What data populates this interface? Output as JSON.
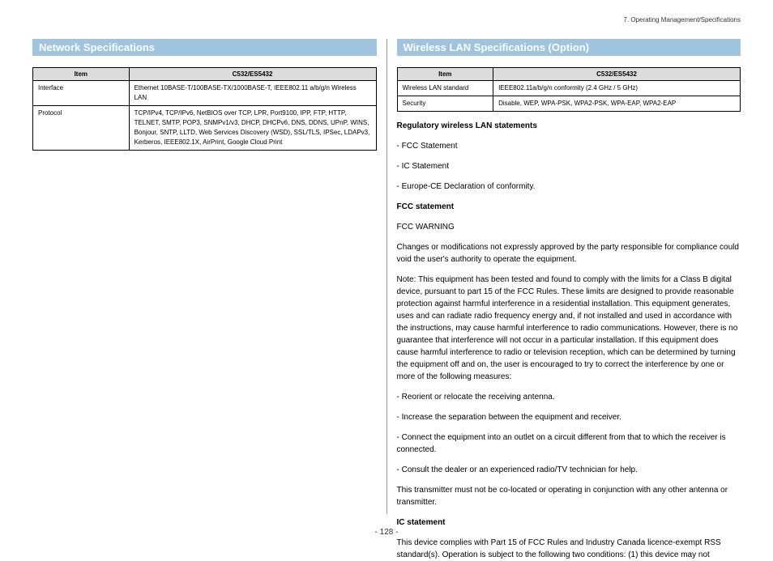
{
  "header": {
    "chapter": "7. Operating Management/Specifications"
  },
  "pageNumber": "- 128 -",
  "left": {
    "title": "Network Specifications",
    "table": {
      "headers": [
        "Item",
        "C532/ES5432"
      ],
      "rows": [
        [
          "Interface",
          "Ethernet 10BASE-T/100BASE-TX/1000BASE-T, IEEE802.11 a/b/g/n Wireless LAN"
        ],
        [
          "Protocol",
          "TCP/IPv4, TCP/IPv6, NetBIOS over TCP, LPR, Port9100, IPP, FTP, HTTP, TELNET, SMTP, POP3, SNMPv1/v3, DHCP, DHCPv6, DNS, DDNS, UPnP, WINS, Bonjour, SNTP, LLTD, Web Services Discovery (WSD), SSL/TLS, IPSec, LDAPv3, Kerberos, IEEE802.1X, AirPrint, Google Cloud Print"
        ]
      ]
    }
  },
  "right": {
    "title": "Wireless LAN Specifications (Option)",
    "table": {
      "headers": [
        "Item",
        "C532/ES5432"
      ],
      "rows": [
        [
          "Wireless LAN standard",
          "IEEE802.11a/b/g/n conformity (2.4 GHz / 5 GHz)"
        ],
        [
          "Security",
          "Disable, WEP, WPA-PSK, WPA2-PSK, WPA-EAP, WPA2-EAP"
        ]
      ]
    },
    "paras": [
      {
        "t": "Regulatory wireless LAN statements",
        "b": true
      },
      {
        "t": "- FCC Statement"
      },
      {
        "t": "- IC Statement"
      },
      {
        "t": "- Europe-CE Declaration of conformity."
      },
      {
        "t": "FCC statement",
        "b": true
      },
      {
        "t": "FCC WARNING"
      },
      {
        "t": "Changes or modifications not expressly approved by the party responsible for compliance could void the user's authority to operate the equipment."
      },
      {
        "t": "Note: This equipment has been tested and found to comply with the limits for a Class B digital device, pursuant to part 15 of the FCC Rules. These limits are designed to provide reasonable protection against harmful interference in a residential installation. This equipment generates, uses and can radiate radio frequency energy and, if not installed and used in accordance with the instructions, may cause harmful interference to radio communications. However, there is no guarantee that interference will not occur in a particular installation. If this equipment does cause harmful interference to radio or television reception, which can be determined by turning the equipment off and on, the user is encouraged to try to correct the interference by one or more of the following measures:"
      },
      {
        "t": "- Reorient or relocate the receiving antenna."
      },
      {
        "t": "- Increase the separation between the equipment and receiver."
      },
      {
        "t": "- Connect the equipment into an outlet on a circuit different from that to which the receiver is connected."
      },
      {
        "t": "- Consult the dealer or an experienced radio/TV technician for help."
      },
      {
        "t": "This transmitter must not be co-located or operating in conjunction with any other antenna or transmitter."
      },
      {
        "t": "IC statement",
        "b": true
      },
      {
        "t": "This device complies with Part 15 of FCC Rules and Industry Canada licence-exempt RSS standard(s). Operation is subject to the following two conditions: (1) this device may not"
      }
    ]
  },
  "style": {
    "sectionTitleBg": "#9fc4e0",
    "sectionTitleColor": "#ffffff",
    "tableHeaderBg": "#dcdcdc",
    "bodyFontSize": 10,
    "tableFontSize": 8
  }
}
